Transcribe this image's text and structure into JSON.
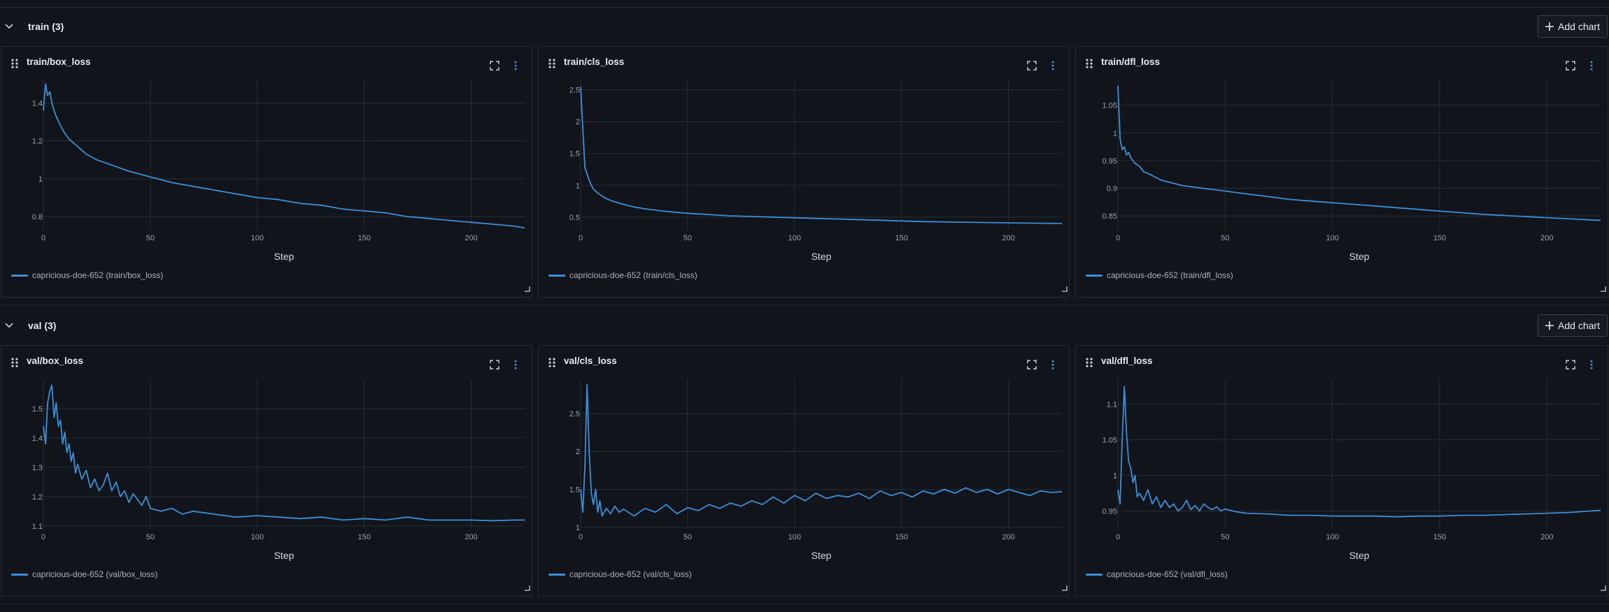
{
  "colors": {
    "series": "#3b8fd6",
    "grid": "#262c35",
    "tick": "#9aa3ad"
  },
  "sections": [
    {
      "title": "train (3)",
      "add_label": "Add chart",
      "charts": [
        {
          "title": "train/box_loss",
          "legend": "capricious-doe-652 (train/box_loss)"
        },
        {
          "title": "train/cls_loss",
          "legend": "capricious-doe-652 (train/cls_loss)"
        },
        {
          "title": "train/dfl_loss",
          "legend": "capricious-doe-652 (train/dfl_loss)"
        }
      ]
    },
    {
      "title": "val (3)",
      "add_label": "Add chart",
      "charts": [
        {
          "title": "val/box_loss",
          "legend": "capricious-doe-652 (val/box_loss)"
        },
        {
          "title": "val/cls_loss",
          "legend": "capricious-doe-652 (val/cls_loss)"
        },
        {
          "title": "val/dfl_loss",
          "legend": "capricious-doe-652 (val/dfl_loss)"
        }
      ]
    }
  ],
  "chart_data": [
    {
      "type": "line",
      "title": "train/box_loss",
      "xlabel": "Step",
      "ylabel": "",
      "xlim": [
        0,
        225
      ],
      "ylim": [
        0.73,
        1.52
      ],
      "xticks": [
        0,
        50,
        100,
        150,
        200
      ],
      "yticks": [
        0.8,
        1,
        1.2,
        1.4
      ],
      "ytick_labels": [
        "0.8",
        "1",
        "1.2",
        "1.4"
      ],
      "series": [
        {
          "name": "capricious-doe-652 (train/box_loss)",
          "x": [
            0,
            1,
            2,
            3,
            4,
            5,
            6,
            8,
            10,
            12,
            15,
            20,
            25,
            30,
            40,
            50,
            60,
            70,
            80,
            90,
            100,
            110,
            120,
            130,
            140,
            150,
            160,
            170,
            180,
            190,
            200,
            210,
            220,
            225
          ],
          "y": [
            1.36,
            1.5,
            1.44,
            1.46,
            1.4,
            1.36,
            1.33,
            1.28,
            1.24,
            1.21,
            1.18,
            1.13,
            1.1,
            1.08,
            1.04,
            1.01,
            0.98,
            0.96,
            0.94,
            0.92,
            0.9,
            0.89,
            0.87,
            0.86,
            0.84,
            0.83,
            0.82,
            0.8,
            0.79,
            0.78,
            0.77,
            0.76,
            0.75,
            0.74
          ]
        }
      ]
    },
    {
      "type": "line",
      "title": "train/cls_loss",
      "xlabel": "Step",
      "ylabel": "",
      "xlim": [
        0,
        225
      ],
      "ylim": [
        0.3,
        2.65
      ],
      "xticks": [
        0,
        50,
        100,
        150,
        200
      ],
      "yticks": [
        0.5,
        1,
        1.5,
        2,
        2.5
      ],
      "ytick_labels": [
        "0.5",
        "1",
        "1.5",
        "2",
        "2.5"
      ],
      "series": [
        {
          "name": "capricious-doe-652 (train/cls_loss)",
          "x": [
            0,
            1,
            2,
            3,
            4,
            5,
            6,
            8,
            10,
            12,
            15,
            20,
            25,
            30,
            40,
            50,
            60,
            70,
            80,
            90,
            100,
            120,
            140,
            160,
            180,
            200,
            225
          ],
          "y": [
            2.55,
            1.9,
            1.28,
            1.18,
            1.08,
            1.0,
            0.94,
            0.88,
            0.83,
            0.79,
            0.75,
            0.7,
            0.66,
            0.63,
            0.59,
            0.56,
            0.54,
            0.52,
            0.51,
            0.5,
            0.49,
            0.47,
            0.45,
            0.43,
            0.42,
            0.41,
            0.4
          ]
        }
      ]
    },
    {
      "type": "line",
      "title": "train/dfl_loss",
      "xlabel": "Step",
      "ylabel": "",
      "xlim": [
        0,
        225
      ],
      "ylim": [
        0.825,
        1.095
      ],
      "xticks": [
        0,
        50,
        100,
        150,
        200
      ],
      "yticks": [
        0.85,
        0.9,
        0.95,
        1,
        1.05
      ],
      "ytick_labels": [
        "0.85",
        "0.9",
        "0.95",
        "1",
        "1.05"
      ],
      "series": [
        {
          "name": "capricious-doe-652 (train/dfl_loss)",
          "x": [
            0,
            1,
            2,
            3,
            4,
            5,
            6,
            8,
            10,
            12,
            15,
            20,
            25,
            30,
            40,
            50,
            60,
            70,
            80,
            90,
            100,
            110,
            120,
            130,
            140,
            150,
            160,
            170,
            180,
            190,
            200,
            210,
            220,
            225
          ],
          "y": [
            1.085,
            0.99,
            0.97,
            0.975,
            0.96,
            0.965,
            0.955,
            0.945,
            0.94,
            0.93,
            0.925,
            0.915,
            0.91,
            0.905,
            0.9,
            0.895,
            0.89,
            0.885,
            0.88,
            0.877,
            0.874,
            0.871,
            0.868,
            0.865,
            0.862,
            0.859,
            0.856,
            0.853,
            0.851,
            0.849,
            0.847,
            0.845,
            0.843,
            0.842
          ]
        }
      ]
    },
    {
      "type": "line",
      "title": "val/box_loss",
      "xlabel": "Step",
      "ylabel": "",
      "xlim": [
        0,
        225
      ],
      "ylim": [
        1.09,
        1.6
      ],
      "xticks": [
        0,
        50,
        100,
        150,
        200
      ],
      "yticks": [
        1.1,
        1.2,
        1.3,
        1.4,
        1.5
      ],
      "ytick_labels": [
        "1.1",
        "1.2",
        "1.3",
        "1.4",
        "1.5"
      ],
      "series": [
        {
          "name": "capricious-doe-652 (val/box_loss)",
          "x": [
            0,
            1,
            2,
            3,
            4,
            5,
            6,
            7,
            8,
            9,
            10,
            11,
            12,
            13,
            14,
            15,
            16,
            18,
            20,
            22,
            24,
            26,
            28,
            30,
            32,
            34,
            36,
            38,
            40,
            42,
            44,
            46,
            48,
            50,
            55,
            60,
            65,
            70,
            80,
            90,
            100,
            110,
            120,
            130,
            140,
            150,
            160,
            170,
            180,
            190,
            200,
            210,
            220,
            225
          ],
          "y": [
            1.44,
            1.38,
            1.52,
            1.56,
            1.58,
            1.47,
            1.52,
            1.44,
            1.46,
            1.38,
            1.42,
            1.35,
            1.38,
            1.32,
            1.35,
            1.28,
            1.31,
            1.26,
            1.29,
            1.23,
            1.26,
            1.22,
            1.24,
            1.28,
            1.22,
            1.25,
            1.2,
            1.22,
            1.18,
            1.21,
            1.19,
            1.17,
            1.2,
            1.16,
            1.15,
            1.16,
            1.14,
            1.15,
            1.14,
            1.13,
            1.135,
            1.13,
            1.125,
            1.13,
            1.12,
            1.125,
            1.12,
            1.13,
            1.12,
            1.12,
            1.12,
            1.118,
            1.12,
            1.12
          ]
        }
      ]
    },
    {
      "type": "line",
      "title": "val/cls_loss",
      "xlabel": "Step",
      "ylabel": "",
      "xlim": [
        0,
        225
      ],
      "ylim": [
        0.98,
        2.95
      ],
      "xticks": [
        0,
        50,
        100,
        150,
        200
      ],
      "yticks": [
        1,
        1.5,
        2,
        2.5
      ],
      "ytick_labels": [
        "1",
        "1.5",
        "2",
        "2.5"
      ],
      "series": [
        {
          "name": "capricious-doe-652 (val/cls_loss)",
          "x": [
            0,
            1,
            2,
            3,
            4,
            5,
            6,
            7,
            8,
            9,
            10,
            12,
            14,
            16,
            18,
            20,
            25,
            30,
            35,
            40,
            45,
            50,
            55,
            60,
            65,
            70,
            75,
            80,
            85,
            90,
            95,
            100,
            105,
            110,
            115,
            120,
            125,
            130,
            135,
            140,
            145,
            150,
            155,
            160,
            165,
            170,
            175,
            180,
            185,
            190,
            195,
            200,
            205,
            210,
            215,
            220,
            225
          ],
          "y": [
            1.5,
            1.2,
            1.8,
            2.88,
            2.0,
            1.45,
            1.3,
            1.5,
            1.2,
            1.35,
            1.15,
            1.25,
            1.18,
            1.28,
            1.2,
            1.24,
            1.15,
            1.25,
            1.2,
            1.3,
            1.18,
            1.26,
            1.22,
            1.3,
            1.25,
            1.32,
            1.28,
            1.35,
            1.3,
            1.4,
            1.32,
            1.42,
            1.35,
            1.45,
            1.38,
            1.42,
            1.4,
            1.45,
            1.38,
            1.48,
            1.42,
            1.46,
            1.4,
            1.48,
            1.44,
            1.5,
            1.45,
            1.52,
            1.46,
            1.5,
            1.44,
            1.5,
            1.46,
            1.42,
            1.48,
            1.46,
            1.47
          ]
        }
      ]
    },
    {
      "type": "line",
      "title": "val/dfl_loss",
      "xlabel": "Step",
      "ylabel": "",
      "xlim": [
        0,
        225
      ],
      "ylim": [
        0.925,
        1.135
      ],
      "xticks": [
        0,
        50,
        100,
        150,
        200
      ],
      "yticks": [
        0.95,
        1,
        1.05,
        1.1
      ],
      "ytick_labels": [
        "0.95",
        "1",
        "1.05",
        "1.1"
      ],
      "series": [
        {
          "name": "capricious-doe-652 (val/dfl_loss)",
          "x": [
            0,
            1,
            2,
            3,
            4,
            5,
            6,
            7,
            8,
            9,
            10,
            12,
            14,
            16,
            18,
            20,
            22,
            24,
            26,
            28,
            30,
            32,
            34,
            36,
            38,
            40,
            42,
            44,
            46,
            48,
            50,
            55,
            60,
            70,
            80,
            90,
            100,
            110,
            120,
            130,
            140,
            150,
            160,
            170,
            180,
            190,
            200,
            210,
            220,
            225
          ],
          "y": [
            0.98,
            0.96,
            1.05,
            1.125,
            1.06,
            1.02,
            1.01,
            0.99,
            1.0,
            0.97,
            0.975,
            0.965,
            0.98,
            0.96,
            0.97,
            0.955,
            0.965,
            0.955,
            0.96,
            0.95,
            0.955,
            0.965,
            0.952,
            0.958,
            0.95,
            0.96,
            0.955,
            0.952,
            0.956,
            0.95,
            0.953,
            0.949,
            0.947,
            0.946,
            0.944,
            0.944,
            0.943,
            0.943,
            0.943,
            0.942,
            0.943,
            0.943,
            0.944,
            0.944,
            0.945,
            0.946,
            0.947,
            0.948,
            0.95,
            0.951
          ]
        }
      ]
    }
  ]
}
